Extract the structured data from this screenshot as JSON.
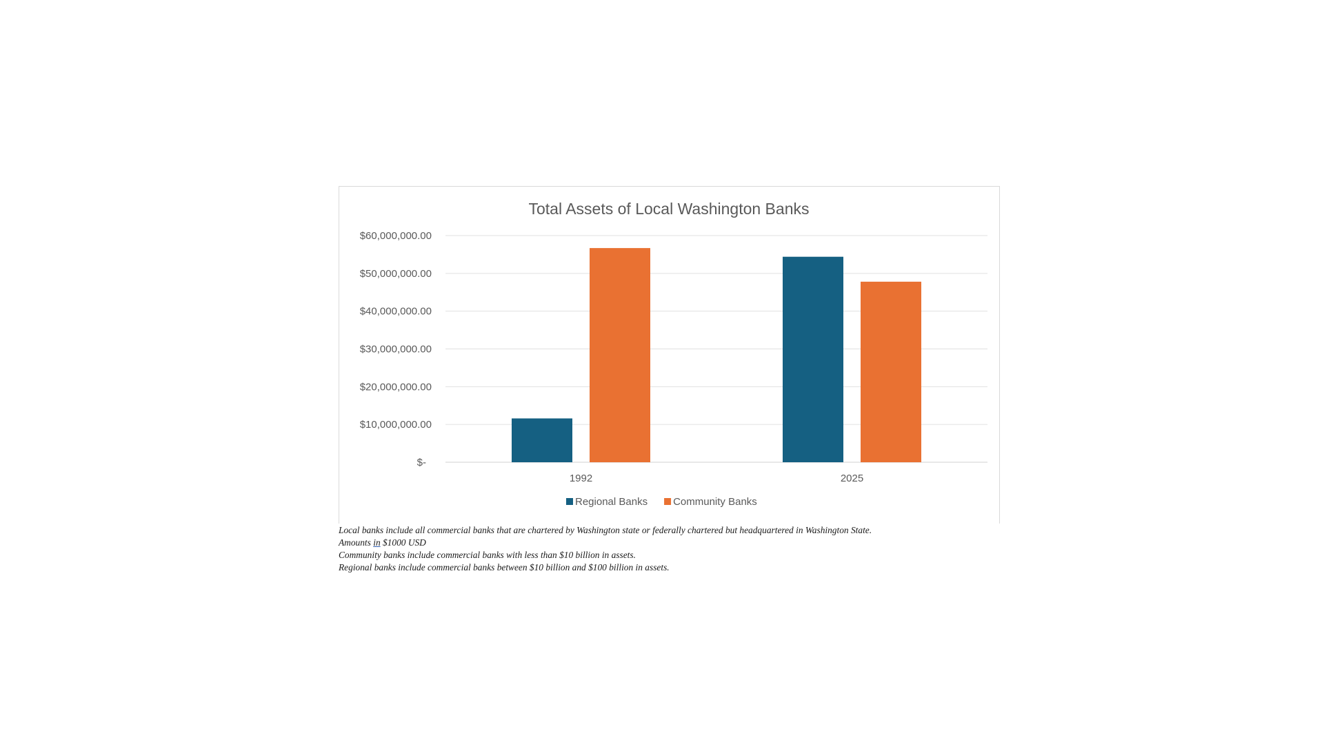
{
  "chart_data": {
    "type": "bar",
    "title": "Total Assets of Local Washington Banks",
    "categories": [
      "1992",
      "2025"
    ],
    "series": [
      {
        "name": "Regional Banks",
        "color": "#156082",
        "values": [
          11600000,
          54400000
        ]
      },
      {
        "name": "Community Banks",
        "color": "#e97132",
        "values": [
          56700000,
          47800000
        ]
      }
    ],
    "ylim": [
      0,
      60000000
    ],
    "yticks": [
      0,
      10000000,
      20000000,
      30000000,
      40000000,
      50000000,
      60000000
    ],
    "ytick_labels": [
      "$-",
      "$10,000,000.00",
      "$20,000,000.00",
      "$30,000,000.00",
      "$40,000,000.00",
      "$50,000,000.00",
      "$60,000,000.00"
    ],
    "xlabel": "",
    "ylabel": "",
    "grid": true,
    "legend_position": "bottom"
  },
  "notes": {
    "line1": "Local banks include all commercial banks that are chartered by Washington state or federally chartered but headquartered in Washington State.",
    "line2_part1": "Amounts ",
    "line2_part2": "in",
    "line2_part3": " $1000 USD",
    "line3": "Community banks include commercial banks with less than $10 billion in assets.",
    "line4": "Regional banks include commercial banks between $10 billion and $100 billion in assets."
  }
}
